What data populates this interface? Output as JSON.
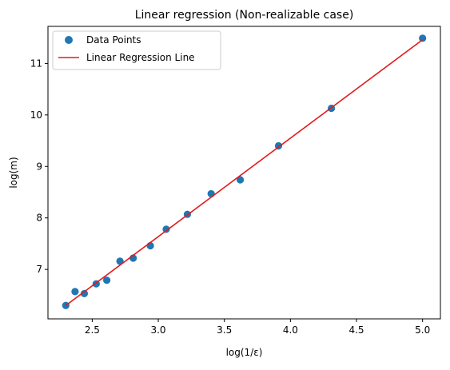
{
  "chart_data": {
    "type": "scatter",
    "title": "Linear regression (Non-realizable case)",
    "xlabel": "log(1/ε)",
    "ylabel": "log(m)",
    "xlim": [
      2.165,
      5.135
    ],
    "ylim": [
      6.04,
      11.72
    ],
    "xticks": [
      2.5,
      3.0,
      3.5,
      4.0,
      4.5,
      5.0
    ],
    "xtick_labels": [
      "2.5",
      "3.0",
      "3.5",
      "4.0",
      "4.5",
      "5.0"
    ],
    "yticks": [
      7,
      8,
      9,
      10,
      11
    ],
    "ytick_labels": [
      "7",
      "8",
      "9",
      "10",
      "11"
    ],
    "legend_position": "top-left",
    "grid": false,
    "series": [
      {
        "name": "Data Points",
        "kind": "scatter",
        "color": "#1f77b4",
        "x": [
          2.3,
          2.37,
          2.44,
          2.53,
          2.61,
          2.71,
          2.81,
          2.94,
          3.06,
          3.22,
          3.4,
          3.62,
          3.91,
          4.31,
          5.0
        ],
        "y": [
          6.3,
          6.57,
          6.53,
          6.72,
          6.79,
          7.16,
          7.22,
          7.46,
          7.78,
          8.07,
          8.47,
          8.74,
          9.4,
          10.13,
          11.49
        ]
      },
      {
        "name": "Linear Regression Line",
        "kind": "line",
        "color": "#e31a1c",
        "x": [
          2.3,
          5.0
        ],
        "y": [
          6.3,
          11.46
        ]
      }
    ]
  }
}
